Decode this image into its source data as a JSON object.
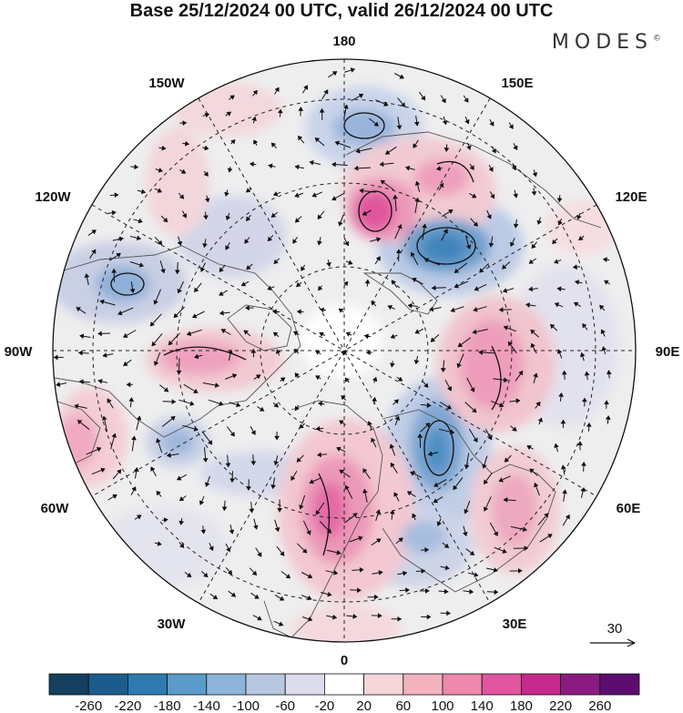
{
  "title": "Base 25/12/2024 00 UTC, valid 26/12/2024 00 UTC",
  "logo": "MODES",
  "logo_mark": "©",
  "meridian_labels": {
    "lon_180": "180",
    "lon_150W": "150W",
    "lon_150E": "150E",
    "lon_120W": "120W",
    "lon_120E": "120E",
    "lon_90W": "90W",
    "lon_90E": "90E",
    "lon_60W": "60W",
    "lon_60E": "60E",
    "lon_30W": "30W",
    "lon_30E": "30E",
    "lon_0": "0"
  },
  "reference_vector_label": "30",
  "colorbar": {
    "labels": [
      "-260",
      "-220",
      "-180",
      "-140",
      "-100",
      "-60",
      "-20",
      "20",
      "60",
      "100",
      "140",
      "180",
      "220",
      "260"
    ],
    "colors": [
      "#143f5e",
      "#1c5c8c",
      "#2e7ab0",
      "#5a9bc9",
      "#8fb4d9",
      "#b8c6e0",
      "#dcdcec",
      "#ffffff",
      "#f6d6d8",
      "#f2b3bd",
      "#ee88ad",
      "#e0559e",
      "#c42a8c",
      "#8a1c80",
      "#5b0e6e"
    ]
  }
}
